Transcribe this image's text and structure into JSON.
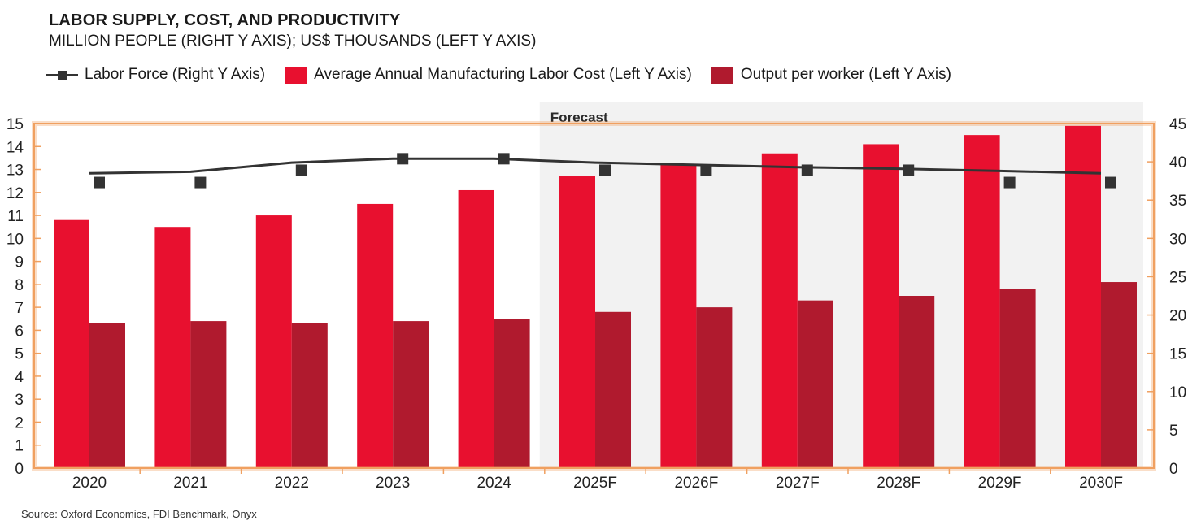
{
  "title": "LABOR SUPPLY, COST, AND PRODUCTIVITY",
  "subtitle": "MILLION PEOPLE (RIGHT Y AXIS); US$ THOUSANDS (LEFT Y AXIS)",
  "source": "Source: Oxford Economics, FDI Benchmark, Onyx",
  "colors": {
    "labor_cost": "#E8102F",
    "output_per_worker": "#B01A2E",
    "labor_force": "#333333",
    "forecast_shade": "#F2F2F2",
    "axis_frame": "#F0A060"
  },
  "chart_data": {
    "type": "bar",
    "categories": [
      "2020",
      "2021",
      "2022",
      "2023",
      "2024",
      "2025F",
      "2026F",
      "2027F",
      "2028F",
      "2029F",
      "2030F"
    ],
    "forecast_label": "Forecast",
    "forecast_start_category": "2025F",
    "left_axis": {
      "range": [
        0,
        15
      ],
      "ticks": [
        "0",
        "1",
        "2",
        "3",
        "4",
        "5",
        "6",
        "7",
        "8",
        "9",
        "10",
        "11",
        "12",
        "13",
        "14",
        "15"
      ]
    },
    "right_axis": {
      "range": [
        0,
        45
      ],
      "ticks": [
        "0",
        "5",
        "10",
        "15",
        "20",
        "25",
        "30",
        "35",
        "40",
        "45"
      ]
    },
    "legend_position": "top",
    "series": [
      {
        "name": "Labor Force (Right Y Axis)",
        "type": "line",
        "axis": "right",
        "values": [
          38.5,
          38.7,
          39.9,
          40.4,
          40.4,
          39.9,
          39.6,
          39.3,
          39.1,
          38.8,
          38.5
        ],
        "marker_values": [
          37.3,
          37.3,
          38.9,
          40.4,
          40.4,
          38.9,
          38.9,
          38.9,
          38.9,
          37.3,
          37.3
        ]
      },
      {
        "name": "Average Annual Manufacturing Labor Cost (Left Y Axis)",
        "type": "bar",
        "axis": "left",
        "values": [
          10.8,
          10.5,
          11.0,
          11.5,
          12.1,
          12.7,
          13.2,
          13.7,
          14.1,
          14.5,
          14.9
        ]
      },
      {
        "name": "Output per worker (Left Y Axis)",
        "type": "bar",
        "axis": "left",
        "values": [
          6.3,
          6.4,
          6.3,
          6.4,
          6.5,
          6.8,
          7.0,
          7.3,
          7.5,
          7.8,
          8.1
        ]
      }
    ]
  }
}
